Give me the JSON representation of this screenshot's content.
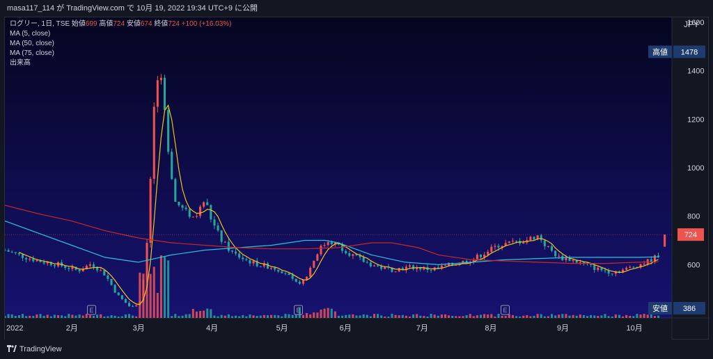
{
  "header": {
    "publish_text": "masa117_114 が TradingView.com で 10月 19, 2022 19:34 UTC+9 に公開"
  },
  "legend": {
    "symbol": "ログリー, 1日, TSE",
    "open_label": "始値",
    "open_value": "699",
    "high_label": "高値",
    "high_value": "724",
    "low_label": "安値",
    "low_value": "674",
    "close_label": "終値",
    "close_value": "724",
    "change": "+100 (+16.03%)",
    "indicators": [
      "MA (5, close)",
      "MA (50, close)",
      "MA (75, close)",
      "出来高"
    ]
  },
  "footer": {
    "brand": "TradingView"
  },
  "colors": {
    "background": "#0d0d3a",
    "up": "#ef5350",
    "down": "#26a69a",
    "ma5": "#f0c419",
    "ma50": "#26c6da",
    "ma75": "#c62828",
    "label_bg": "#1e3a6e"
  },
  "chart_data": {
    "type": "candlestick",
    "currency": "JPY",
    "ylim": [
      380,
      1620
    ],
    "yticks": [
      600,
      800,
      1000,
      1200,
      1400,
      1600
    ],
    "y_tick_labels": [
      "600",
      "800",
      "1000",
      "1200",
      "1400",
      "1600"
    ],
    "x_months": [
      "2022",
      "2月",
      "3月",
      "4月",
      "5月",
      "6月",
      "7月",
      "8月",
      "9月",
      "10月"
    ],
    "high_marker": {
      "label": "高値",
      "value": 1478
    },
    "low_marker": {
      "label": "安値",
      "value": 386
    },
    "last_price": {
      "value": 724,
      "label": "724"
    },
    "earnings_marker": "E",
    "earnings_positions": [
      0.13,
      0.44,
      0.75
    ],
    "price_path": [
      [
        0,
        660
      ],
      [
        0.02,
        640
      ],
      [
        0.05,
        615
      ],
      [
        0.08,
        600
      ],
      [
        0.11,
        575
      ],
      [
        0.13,
        605
      ],
      [
        0.15,
        560
      ],
      [
        0.17,
        470
      ],
      [
        0.19,
        420
      ],
      [
        0.205,
        460
      ],
      [
        0.215,
        760
      ],
      [
        0.225,
        1330
      ],
      [
        0.235,
        1350
      ],
      [
        0.245,
        1080
      ],
      [
        0.255,
        860
      ],
      [
        0.27,
        820
      ],
      [
        0.285,
        790
      ],
      [
        0.3,
        870
      ],
      [
        0.31,
        780
      ],
      [
        0.325,
        700
      ],
      [
        0.34,
        650
      ],
      [
        0.36,
        620
      ],
      [
        0.38,
        600
      ],
      [
        0.4,
        590
      ],
      [
        0.42,
        570
      ],
      [
        0.435,
        520
      ],
      [
        0.45,
        540
      ],
      [
        0.46,
        600
      ],
      [
        0.47,
        660
      ],
      [
        0.485,
        700
      ],
      [
        0.5,
        680
      ],
      [
        0.52,
        640
      ],
      [
        0.54,
        610
      ],
      [
        0.56,
        590
      ],
      [
        0.58,
        580
      ],
      [
        0.61,
        590
      ],
      [
        0.64,
        580
      ],
      [
        0.67,
        600
      ],
      [
        0.7,
        620
      ],
      [
        0.72,
        650
      ],
      [
        0.74,
        680
      ],
      [
        0.76,
        690
      ],
      [
        0.78,
        700
      ],
      [
        0.8,
        720
      ],
      [
        0.81,
        680
      ],
      [
        0.83,
        630
      ],
      [
        0.85,
        620
      ],
      [
        0.87,
        600
      ],
      [
        0.89,
        580
      ],
      [
        0.91,
        570
      ],
      [
        0.93,
        580
      ],
      [
        0.95,
        600
      ],
      [
        0.97,
        620
      ],
      [
        0.98,
        640
      ]
    ],
    "ma50_path": [
      [
        0,
        780
      ],
      [
        0.05,
        730
      ],
      [
        0.1,
        680
      ],
      [
        0.15,
        630
      ],
      [
        0.2,
        610
      ],
      [
        0.25,
        640
      ],
      [
        0.3,
        660
      ],
      [
        0.35,
        670
      ],
      [
        0.4,
        680
      ],
      [
        0.45,
        700
      ],
      [
        0.48,
        700
      ],
      [
        0.5,
        690
      ],
      [
        0.55,
        640
      ],
      [
        0.6,
        610
      ],
      [
        0.65,
        600
      ],
      [
        0.7,
        610
      ],
      [
        0.75,
        620
      ],
      [
        0.8,
        625
      ],
      [
        0.85,
        630
      ],
      [
        0.9,
        630
      ],
      [
        0.95,
        630
      ],
      [
        0.98,
        632
      ]
    ],
    "ma75_path": [
      [
        0,
        845
      ],
      [
        0.05,
        810
      ],
      [
        0.1,
        780
      ],
      [
        0.15,
        740
      ],
      [
        0.2,
        710
      ],
      [
        0.25,
        690
      ],
      [
        0.3,
        680
      ],
      [
        0.35,
        670
      ],
      [
        0.4,
        665
      ],
      [
        0.45,
        665
      ],
      [
        0.5,
        670
      ],
      [
        0.55,
        690
      ],
      [
        0.58,
        690
      ],
      [
        0.62,
        670
      ],
      [
        0.65,
        640
      ],
      [
        0.7,
        620
      ],
      [
        0.75,
        615
      ],
      [
        0.8,
        610
      ],
      [
        0.85,
        605
      ],
      [
        0.9,
        605
      ],
      [
        0.95,
        610
      ],
      [
        0.98,
        612
      ]
    ]
  }
}
